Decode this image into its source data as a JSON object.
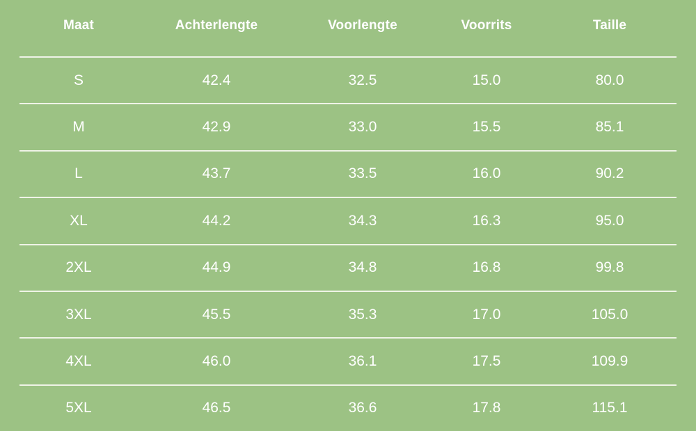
{
  "table": {
    "columns": [
      "Maat",
      "Achterlengte",
      "Voorlengte",
      "Voorrits",
      "Taille"
    ],
    "rows": [
      [
        "S",
        "42.4",
        "32.5",
        "15.0",
        "80.0"
      ],
      [
        "M",
        "42.9",
        "33.0",
        "15.5",
        "85.1"
      ],
      [
        "L",
        "43.7",
        "33.5",
        "16.0",
        "90.2"
      ],
      [
        "XL",
        "44.2",
        "34.3",
        "16.3",
        "95.0"
      ],
      [
        "2XL",
        "44.9",
        "34.8",
        "16.8",
        "99.8"
      ],
      [
        "3XL",
        "45.5",
        "35.3",
        "17.0",
        "105.0"
      ],
      [
        "4XL",
        "46.0",
        "36.1",
        "17.5",
        "109.9"
      ],
      [
        "5XL",
        "46.5",
        "36.6",
        "17.8",
        "115.1"
      ]
    ]
  },
  "chart_data": {
    "type": "table",
    "title": "",
    "columns": [
      "Maat",
      "Achterlengte",
      "Voorlengte",
      "Voorrits",
      "Taille"
    ],
    "rows": [
      [
        "S",
        42.4,
        32.5,
        15.0,
        80.0
      ],
      [
        "M",
        42.9,
        33.0,
        15.5,
        85.1
      ],
      [
        "L",
        43.7,
        33.5,
        16.0,
        90.2
      ],
      [
        "XL",
        44.2,
        34.3,
        16.3,
        95.0
      ],
      [
        "2XL",
        44.9,
        34.8,
        16.8,
        99.8
      ],
      [
        "3XL",
        45.5,
        35.3,
        17.0,
        105.0
      ],
      [
        "4XL",
        46.0,
        36.1,
        17.5,
        109.9
      ],
      [
        "5XL",
        46.5,
        36.6,
        17.8,
        115.1
      ]
    ]
  },
  "colors": {
    "background": "#9cc284",
    "separator": "#eff3e7",
    "text": "#ffffff"
  }
}
